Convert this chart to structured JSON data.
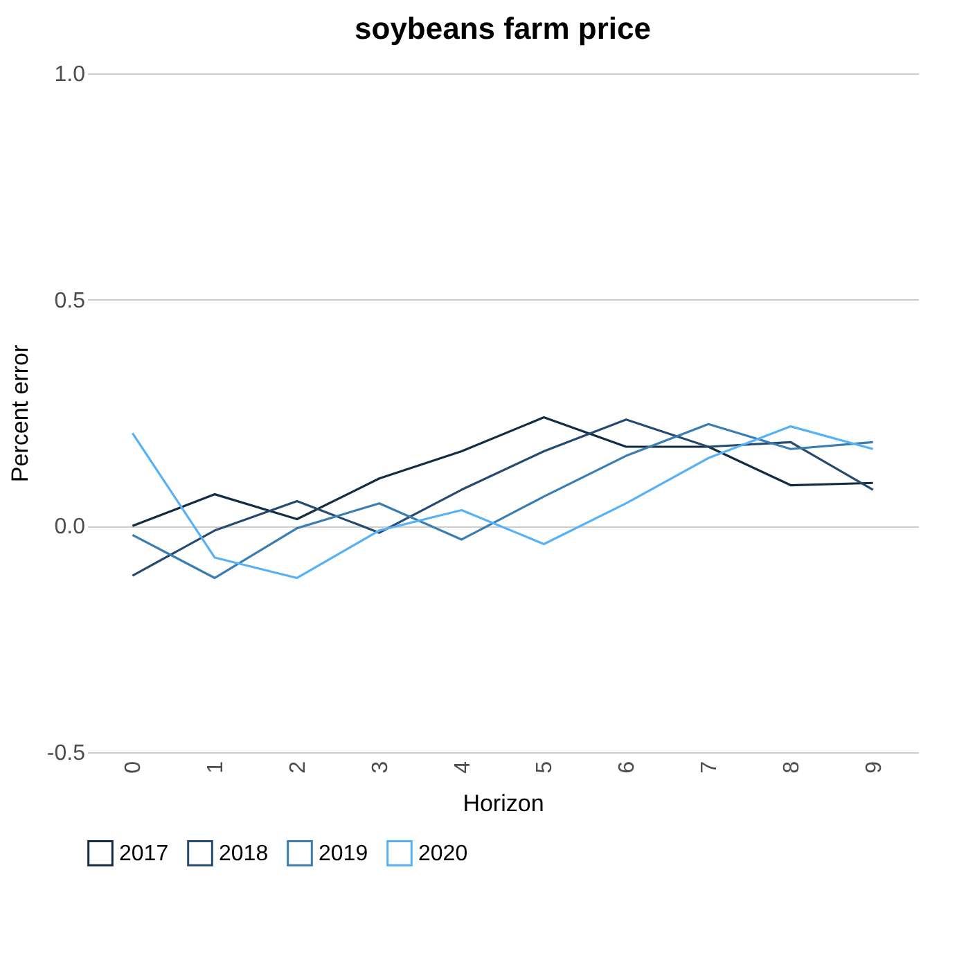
{
  "chart_data": {
    "type": "line",
    "title": "soybeans farm price",
    "xlabel": "Horizon",
    "ylabel": "Percent error",
    "categories": [
      "0",
      "1",
      "2",
      "3",
      "4",
      "5",
      "6",
      "7",
      "8",
      "9"
    ],
    "series": [
      {
        "name": "2017",
        "color": "#132b43",
        "values": [
          0.0,
          0.07,
          0.015,
          0.105,
          0.165,
          0.24,
          0.175,
          0.175,
          0.09,
          0.095
        ]
      },
      {
        "name": "2018",
        "color": "#264b71",
        "values": [
          -0.11,
          -0.01,
          0.055,
          -0.015,
          0.08,
          0.165,
          0.235,
          0.175,
          0.185,
          0.08
        ]
      },
      {
        "name": "2019",
        "color": "#3a7db2",
        "values": [
          -0.02,
          -0.115,
          -0.005,
          0.05,
          -0.03,
          0.065,
          0.155,
          0.225,
          0.17,
          0.185
        ]
      },
      {
        "name": "2020",
        "color": "#56b1f7",
        "values": [
          0.205,
          -0.07,
          -0.115,
          -0.01,
          0.035,
          -0.04,
          0.05,
          0.15,
          0.22,
          0.17
        ]
      }
    ],
    "ylim": [
      -0.5,
      1.0
    ],
    "yticks": [
      {
        "value": -0.5,
        "label": "-0.5"
      },
      {
        "value": 0,
        "label": "0.0"
      },
      {
        "value": 0.5,
        "label": "0.5"
      },
      {
        "value": 1,
        "label": "1.0"
      }
    ],
    "grid": "y",
    "legend": "bottom",
    "marker": "none",
    "line_style": "solid"
  }
}
